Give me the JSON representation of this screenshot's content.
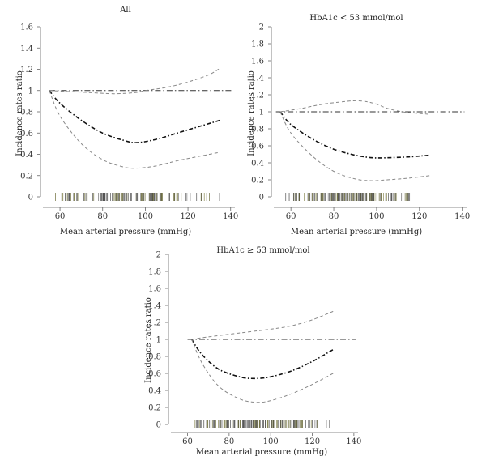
{
  "chart_data": [
    {
      "type": "line",
      "title": "All",
      "xlabel": "Mean arterial pressure (mmHg)",
      "ylabel": "Incidence rates ratio",
      "xlim": [
        52,
        142
      ],
      "ylim": [
        0,
        1.6
      ],
      "xticks": [
        60,
        80,
        100,
        120,
        140
      ],
      "yticks": [
        0,
        0.2,
        0.4,
        0.6,
        0.8,
        1,
        1.2,
        1.4,
        1.6
      ],
      "rug_range": [
        57,
        135
      ],
      "reference_line": 1,
      "series": [
        {
          "role": "estimate",
          "x": [
            55,
            60,
            70,
            80,
            90,
            96,
            105,
            115,
            125,
            135
          ],
          "y": [
            1.0,
            0.88,
            0.72,
            0.6,
            0.53,
            0.51,
            0.54,
            0.6,
            0.66,
            0.72
          ]
        },
        {
          "role": "upper_ci",
          "x": [
            55,
            65,
            75,
            85,
            95,
            100,
            110,
            120,
            130,
            135
          ],
          "y": [
            1.0,
            0.99,
            0.98,
            0.97,
            0.98,
            1.0,
            1.03,
            1.08,
            1.15,
            1.21
          ]
        },
        {
          "role": "lower_ci",
          "x": [
            55,
            60,
            70,
            80,
            90,
            96,
            105,
            115,
            125,
            135
          ],
          "y": [
            1.0,
            0.76,
            0.5,
            0.35,
            0.28,
            0.27,
            0.29,
            0.34,
            0.38,
            0.42
          ]
        }
      ]
    },
    {
      "type": "line",
      "title": "HbA1c < 53 mmol/mol",
      "xlabel": "Mean arterial pressure (mmHg)",
      "ylabel": "Incidence rates ratio",
      "xlim": [
        52,
        142
      ],
      "ylim": [
        0,
        2
      ],
      "xticks": [
        60,
        80,
        100,
        120,
        140
      ],
      "yticks": [
        0,
        0.2,
        0.4,
        0.6,
        0.8,
        1,
        1.2,
        1.4,
        1.6,
        1.8,
        2
      ],
      "rug_range": [
        55,
        125
      ],
      "reference_line": 1,
      "series": [
        {
          "role": "estimate",
          "x": [
            55,
            60,
            70,
            80,
            90,
            98,
            105,
            115,
            125
          ],
          "y": [
            1.0,
            0.85,
            0.68,
            0.56,
            0.49,
            0.46,
            0.46,
            0.47,
            0.49
          ]
        },
        {
          "role": "upper_ci",
          "x": [
            55,
            65,
            75,
            85,
            90,
            95,
            100,
            105,
            112,
            120,
            125
          ],
          "y": [
            1.0,
            1.04,
            1.09,
            1.12,
            1.13,
            1.12,
            1.09,
            1.04,
            1.0,
            0.98,
            0.97
          ]
        },
        {
          "role": "lower_ci",
          "x": [
            55,
            60,
            70,
            80,
            90,
            98,
            105,
            115,
            125
          ],
          "y": [
            1.0,
            0.75,
            0.48,
            0.3,
            0.21,
            0.19,
            0.2,
            0.22,
            0.25
          ]
        }
      ]
    },
    {
      "type": "line",
      "title": "HbA1c ≥ 53 mmol/mol",
      "xlabel": "Mean arterial pressure (mmHg)",
      "ylabel": "Incidence rates ratio",
      "xlim": [
        52,
        142
      ],
      "ylim": [
        0,
        2
      ],
      "xticks": [
        60,
        80,
        100,
        120,
        140
      ],
      "yticks": [
        0,
        0.2,
        0.4,
        0.6,
        0.8,
        1,
        1.2,
        1.4,
        1.6,
        1.8,
        2
      ],
      "rug_range": [
        62,
        130
      ],
      "reference_line": 1,
      "series": [
        {
          "role": "estimate",
          "x": [
            62,
            67,
            75,
            85,
            92,
            100,
            110,
            120,
            130
          ],
          "y": [
            1.0,
            0.82,
            0.65,
            0.56,
            0.54,
            0.56,
            0.63,
            0.74,
            0.88
          ]
        },
        {
          "role": "upper_ci",
          "x": [
            62,
            70,
            80,
            90,
            100,
            110,
            120,
            130
          ],
          "y": [
            1.0,
            1.03,
            1.06,
            1.09,
            1.12,
            1.16,
            1.23,
            1.33
          ]
        },
        {
          "role": "lower_ci",
          "x": [
            62,
            67,
            75,
            85,
            93,
            100,
            110,
            120,
            130
          ],
          "y": [
            1.0,
            0.72,
            0.45,
            0.3,
            0.26,
            0.28,
            0.36,
            0.47,
            0.6
          ]
        }
      ]
    }
  ]
}
